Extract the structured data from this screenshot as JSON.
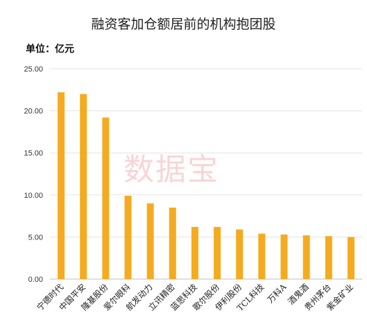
{
  "chart_data": {
    "type": "bar",
    "title": "融资客加仓额居前的机构抱团股",
    "unit_label": "单位：亿元",
    "watermark": "数据宝",
    "categories": [
      "宁德时代",
      "中国平安",
      "隆基股份",
      "爱尔眼科",
      "航发动力",
      "立讯精密",
      "蓝思科技",
      "歌尔股份",
      "伊利股份",
      "TCL科技",
      "万科A",
      "酒鬼酒",
      "贵州茅台",
      "紫金矿业"
    ],
    "values": [
      22.2,
      22.0,
      19.2,
      9.9,
      9.0,
      8.5,
      6.2,
      6.2,
      5.9,
      5.4,
      5.3,
      5.2,
      5.1,
      5.0
    ],
    "yticks": [
      "0.00",
      "5.00",
      "10.00",
      "15.00",
      "20.00",
      "25.00"
    ],
    "ylim": [
      0,
      25
    ],
    "grid": true,
    "bar_color": "#F5AB1F"
  }
}
